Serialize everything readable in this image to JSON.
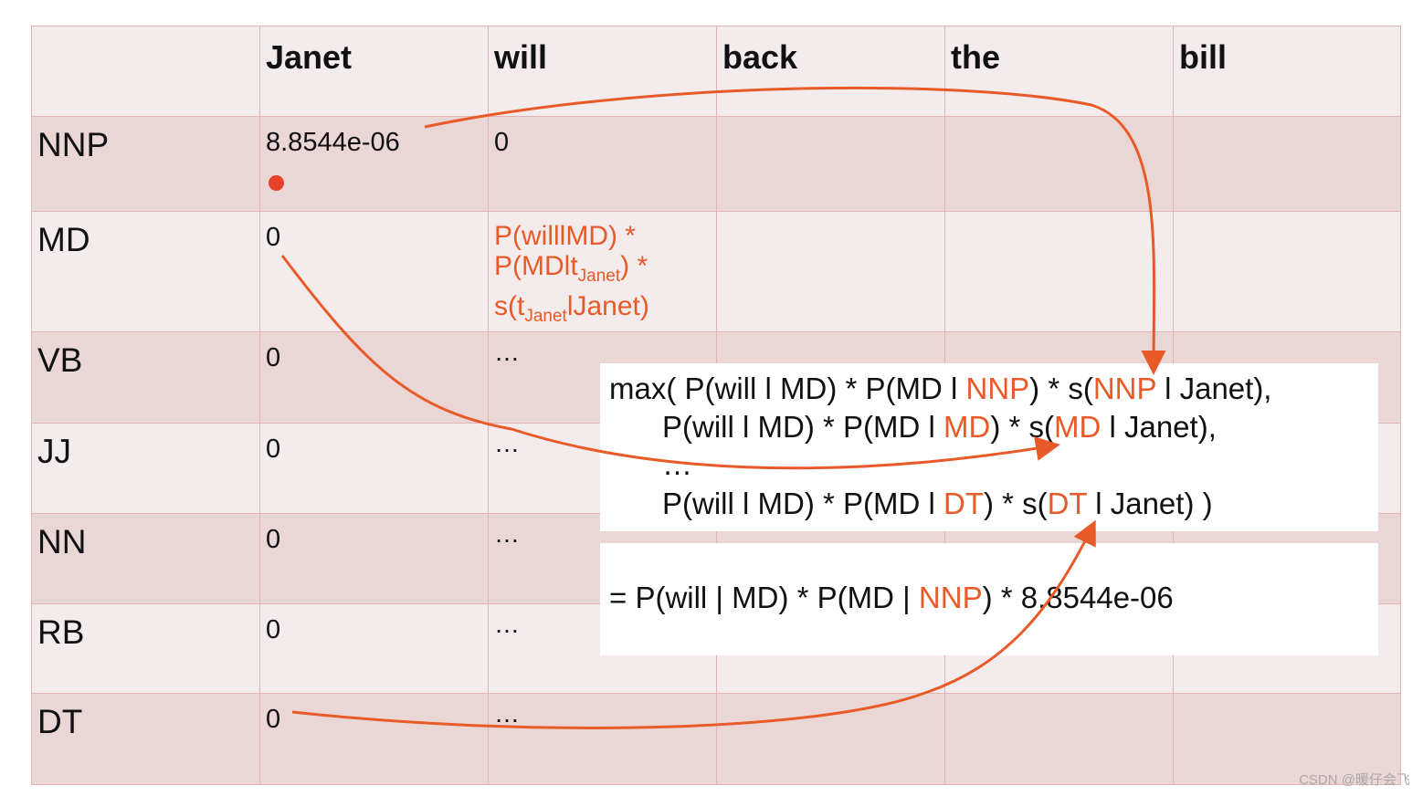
{
  "columns": [
    "",
    "Janet",
    "will",
    "back",
    "the",
    "bill"
  ],
  "rows": [
    {
      "tag": "NNP",
      "janet": "8.8544e-06",
      "will": "0"
    },
    {
      "tag": "MD",
      "janet": "0",
      "will_formula": {
        "l1": "P(willlMD) *",
        "l2a": "P(MDlt",
        "l2sub": "Janet",
        "l2b": ") *",
        "l3a": "s(t",
        "l3sub": "Janet",
        "l3b": "lJanet)"
      }
    },
    {
      "tag": "VB",
      "janet": "0",
      "will": "…"
    },
    {
      "tag": "JJ",
      "janet": "0",
      "will": "…"
    },
    {
      "tag": "NN",
      "janet": "0",
      "will": "…"
    },
    {
      "tag": "RB",
      "janet": "0",
      "will": "…"
    },
    {
      "tag": "DT",
      "janet": "0",
      "will": "…"
    }
  ],
  "max_box": {
    "line1": {
      "a": "max( P(will l MD) * P(MD l ",
      "b": "NNP",
      "c": ") * s(",
      "d": "NNP",
      "e": " l Janet),"
    },
    "line2": {
      "a": "P(will l MD) * P(MD l ",
      "b": "MD",
      "c": ") * s(",
      "d": "MD",
      "e": " l Janet),"
    },
    "line3": "…",
    "line4": {
      "a": "P(will l MD) * P(MD l ",
      "b": "DT",
      "c": ") * s(",
      "d": "DT",
      "e": " l Janet) )"
    }
  },
  "result_box": {
    "a": "= P(will | MD) * P(MD | ",
    "b": "NNP",
    "c": ") * 8.8544e-06"
  },
  "watermark": "CSDN @暖仔会飞",
  "colors": {
    "accent": "#e85a28",
    "row_dark": "#ebd6d6",
    "row_light": "#f4ecec",
    "grid_line": "#e3b4b4",
    "dot": "#e8402a"
  }
}
